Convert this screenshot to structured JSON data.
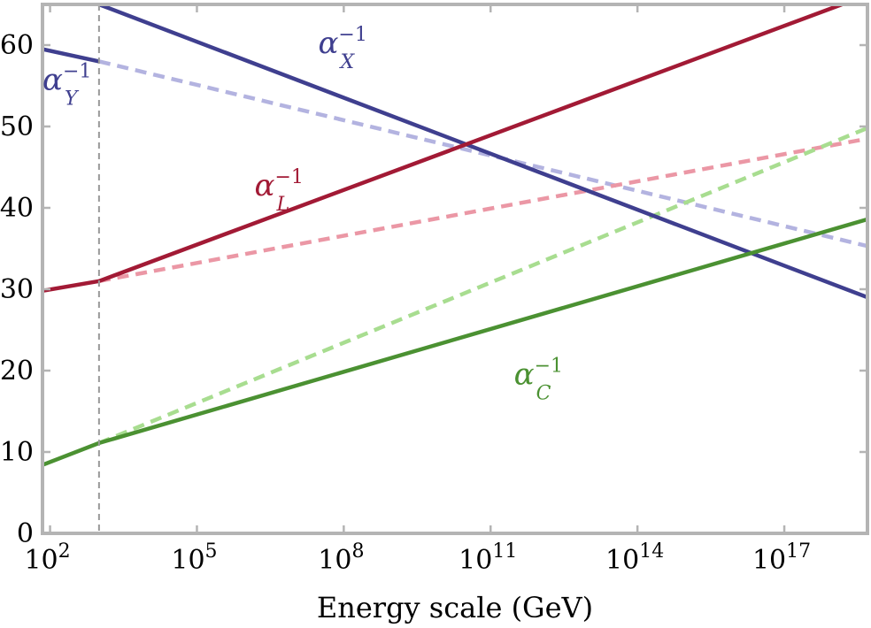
{
  "chart_data": {
    "type": "line",
    "title": "",
    "xlabel": "Energy scale (GeV)",
    "ylabel": "",
    "x_scale": "log",
    "x_range_gev": [
      70.0,
      5e+18
    ],
    "y_range": [
      0,
      65
    ],
    "grid": false,
    "x_ticks": [
      {
        "value": 100.0,
        "base": "10",
        "exp": "2"
      },
      {
        "value": 100000.0,
        "base": "10",
        "exp": "5"
      },
      {
        "value": 100000000.0,
        "base": "10",
        "exp": "8"
      },
      {
        "value": 100000000000.0,
        "base": "10",
        "exp": "11"
      },
      {
        "value": 100000000000000.0,
        "base": "10",
        "exp": "14"
      },
      {
        "value": 1e+17,
        "base": "10",
        "exp": "17"
      }
    ],
    "y_ticks": [
      0,
      10,
      20,
      30,
      40,
      50,
      60
    ],
    "threshold_gev": 1000.0,
    "colors": {
      "axis": "#b4b4b4",
      "threshold": "#999999",
      "X": "#3f3f8f",
      "Y": "#3f3f8f",
      "L": "#a21a35",
      "C": "#4b9132",
      "Y_dashed": "#b3b3e0",
      "L_dashed": "#eb97a5",
      "C_dashed": "#a8dd90"
    },
    "series": [
      {
        "key": "Y",
        "style": "solid",
        "points": [
          [
            70.0,
            59.5
          ],
          [
            1000.0,
            58
          ]
        ]
      },
      {
        "key": "Y_dashed",
        "style": "dashed",
        "points": [
          [
            1000.0,
            58
          ],
          [
            5e+18,
            35.3
          ]
        ]
      },
      {
        "key": "X",
        "style": "solid",
        "points": [
          [
            1000.0,
            65
          ],
          [
            5e+18,
            29
          ]
        ]
      },
      {
        "key": "L",
        "style": "solid",
        "points": [
          [
            70.0,
            29.8
          ],
          [
            1000.0,
            31
          ],
          [
            1.5e+18,
            65
          ]
        ]
      },
      {
        "key": "L_dashed",
        "style": "dashed",
        "points": [
          [
            1000.0,
            31
          ],
          [
            5e+18,
            48.5
          ]
        ]
      },
      {
        "key": "C",
        "style": "solid",
        "points": [
          [
            70.0,
            8.4
          ],
          [
            1000.0,
            11.1
          ],
          [
            5e+18,
            38.6
          ]
        ]
      },
      {
        "key": "C_dashed",
        "style": "dashed",
        "points": [
          [
            1000.0,
            11.1
          ],
          [
            5e+18,
            49.8
          ]
        ]
      }
    ],
    "labels": [
      {
        "key": "X",
        "base": "α",
        "sub": "X",
        "sup": "−1",
        "at": [
          30000000.0,
          59
        ]
      },
      {
        "key": "Y",
        "base": "α",
        "sub": "Y",
        "sup": "−1",
        "at": [
          70.0,
          54.5
        ]
      },
      {
        "key": "L",
        "base": "α",
        "sub": "L",
        "sup": "−1",
        "at": [
          1500000.0,
          41.5
        ]
      },
      {
        "key": "C",
        "base": "α",
        "sub": "C",
        "sup": "−1",
        "at": [
          300000000000.0,
          18.3
        ]
      }
    ]
  }
}
